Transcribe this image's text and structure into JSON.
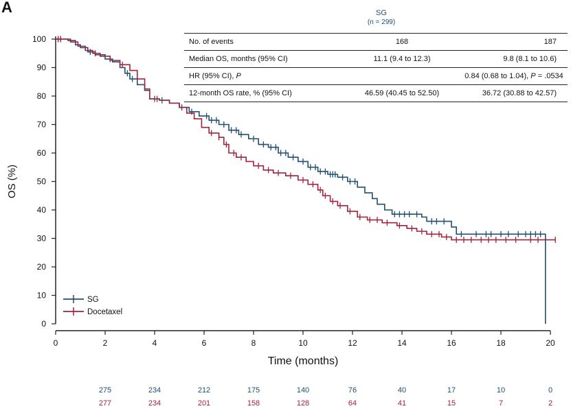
{
  "panel_label": "A",
  "table": {
    "column_header": {
      "title": "SG",
      "subtitle": "(n = 299)"
    },
    "rows": [
      {
        "label": "No. of events",
        "sg": "168",
        "docetaxel": "187"
      },
      {
        "label": "Median OS, months (95% CI)",
        "sg": "11.1 (9.4 to 12.3)",
        "docetaxel": "9.8 (8.1 to 10.6)"
      },
      {
        "label_prefix": "HR (95% CI), ",
        "label_italic": "P",
        "combined_prefix": "0.84 (0.68 to 1.04), ",
        "combined_italic": "P",
        "combined_suffix": " = .0534"
      },
      {
        "label": "12-month OS rate, % (95% CI)",
        "sg": "46.59 (40.45 to 52.50)",
        "docetaxel": "36.72 (30.88 to 42.57)"
      }
    ]
  },
  "chart_data": {
    "type": "line",
    "subtype": "kaplan-meier",
    "title": "",
    "xlabel": "Time (months)",
    "ylabel": "OS (%)",
    "xlim": [
      0,
      20
    ],
    "ylim": [
      0,
      100
    ],
    "x_ticks": [
      0,
      2,
      4,
      6,
      8,
      10,
      12,
      14,
      16,
      18,
      20
    ],
    "y_ticks": [
      0,
      10,
      20,
      30,
      40,
      50,
      60,
      70,
      80,
      90,
      100
    ],
    "grid": false,
    "legend_position": "bottom-left",
    "series": [
      {
        "name": "SG",
        "color": "#1f4e70",
        "step_points": [
          [
            0,
            100
          ],
          [
            0.5,
            99.5
          ],
          [
            0.8,
            98
          ],
          [
            1,
            97
          ],
          [
            1.3,
            95.5
          ],
          [
            1.6,
            94.5
          ],
          [
            2,
            93
          ],
          [
            2.3,
            92
          ],
          [
            2.6,
            90
          ],
          [
            2.8,
            88
          ],
          [
            3,
            86
          ],
          [
            3.3,
            84
          ],
          [
            3.6,
            82
          ],
          [
            3.8,
            79
          ],
          [
            4.2,
            78.5
          ],
          [
            4.6,
            77.5
          ],
          [
            5,
            76
          ],
          [
            5.4,
            74.5
          ],
          [
            5.8,
            73
          ],
          [
            6.2,
            71.5
          ],
          [
            6.6,
            70
          ],
          [
            7,
            68
          ],
          [
            7.4,
            66.5
          ],
          [
            7.8,
            65
          ],
          [
            8.2,
            63
          ],
          [
            8.6,
            62
          ],
          [
            9,
            60
          ],
          [
            9.4,
            58.5
          ],
          [
            9.8,
            57
          ],
          [
            10.2,
            55
          ],
          [
            10.6,
            53.5
          ],
          [
            11,
            52.5
          ],
          [
            11.4,
            51.5
          ],
          [
            11.8,
            50
          ],
          [
            12.2,
            48
          ],
          [
            12.5,
            46
          ],
          [
            12.8,
            44
          ],
          [
            13,
            42
          ],
          [
            13.3,
            40
          ],
          [
            13.6,
            38.5
          ],
          [
            14.5,
            38.5
          ],
          [
            14.8,
            37.5
          ],
          [
            15,
            36
          ],
          [
            15.6,
            36
          ],
          [
            16,
            34
          ],
          [
            16.2,
            31.5
          ],
          [
            19.8,
            31.5
          ],
          [
            19.8,
            0
          ]
        ],
        "censor_x": [
          0.1,
          0.2,
          1.4,
          2.2,
          2.9,
          3.1,
          4,
          4.3,
          5.1,
          5.5,
          6.1,
          6.3,
          6.5,
          6.8,
          7.1,
          7.3,
          7.5,
          8,
          8.4,
          8.7,
          8.9,
          9.1,
          9.3,
          9.6,
          10,
          10.3,
          10.5,
          10.7,
          10.9,
          11.1,
          11.2,
          11.3,
          11.6,
          11.9,
          12.1,
          13.7,
          13.9,
          14.1,
          14.3,
          14.6,
          15.2,
          15.4,
          15.7,
          16.4,
          17,
          17.4,
          17.6,
          18,
          18.3,
          18.7,
          19,
          19.2,
          19.4,
          19.6
        ],
        "at_risk": [
          275,
          234,
          212,
          175,
          140,
          76,
          40,
          17,
          10,
          0
        ]
      },
      {
        "name": "Docetaxel",
        "color": "#a3203a",
        "step_points": [
          [
            0,
            100
          ],
          [
            0.6,
            99
          ],
          [
            0.9,
            97.5
          ],
          [
            1.2,
            96
          ],
          [
            1.5,
            95
          ],
          [
            1.8,
            94
          ],
          [
            2.2,
            92.5
          ],
          [
            2.6,
            91
          ],
          [
            3,
            89
          ],
          [
            3.3,
            86
          ],
          [
            3.6,
            82.5
          ],
          [
            3.8,
            79
          ],
          [
            4.2,
            78.5
          ],
          [
            4.6,
            77.5
          ],
          [
            5,
            76
          ],
          [
            5.3,
            74
          ],
          [
            5.6,
            72
          ],
          [
            5.9,
            69
          ],
          [
            6.2,
            67
          ],
          [
            6.6,
            65.5
          ],
          [
            6.8,
            63
          ],
          [
            7,
            60
          ],
          [
            7.3,
            58.5
          ],
          [
            7.7,
            57
          ],
          [
            8,
            55.5
          ],
          [
            8.4,
            54
          ],
          [
            8.8,
            53
          ],
          [
            9.3,
            52
          ],
          [
            9.8,
            50.5
          ],
          [
            10.2,
            49
          ],
          [
            10.6,
            47
          ],
          [
            10.8,
            45
          ],
          [
            11.1,
            43
          ],
          [
            11.4,
            41.5
          ],
          [
            11.8,
            39.5
          ],
          [
            12.2,
            37.5
          ],
          [
            12.6,
            36.5
          ],
          [
            13.2,
            35.5
          ],
          [
            13.8,
            34.5
          ],
          [
            14.2,
            33.5
          ],
          [
            14.6,
            32.5
          ],
          [
            15,
            31.5
          ],
          [
            15.6,
            30.5
          ],
          [
            16,
            29.5
          ],
          [
            20.2,
            29.5
          ]
        ],
        "censor_x": [
          0.1,
          0.2,
          1.6,
          2.7,
          4.1,
          6.3,
          6.6,
          6.9,
          7.2,
          7.5,
          8.2,
          8.6,
          9,
          9.5,
          10,
          10.4,
          10.7,
          10.9,
          11.2,
          11.5,
          11.9,
          12.3,
          12.7,
          13,
          13.4,
          13.9,
          14.4,
          14.8,
          15.2,
          15.5,
          15.8,
          16.2,
          16.5,
          16.8,
          17.2,
          17.5,
          17.8,
          18.2,
          18.6,
          19.2,
          19.5,
          20.2
        ],
        "at_risk": [
          277,
          234,
          201,
          158,
          128,
          64,
          41,
          15,
          7,
          2
        ]
      }
    ],
    "at_risk_x": [
      2,
      4,
      6,
      8,
      10,
      12,
      14,
      16,
      18,
      20
    ]
  }
}
